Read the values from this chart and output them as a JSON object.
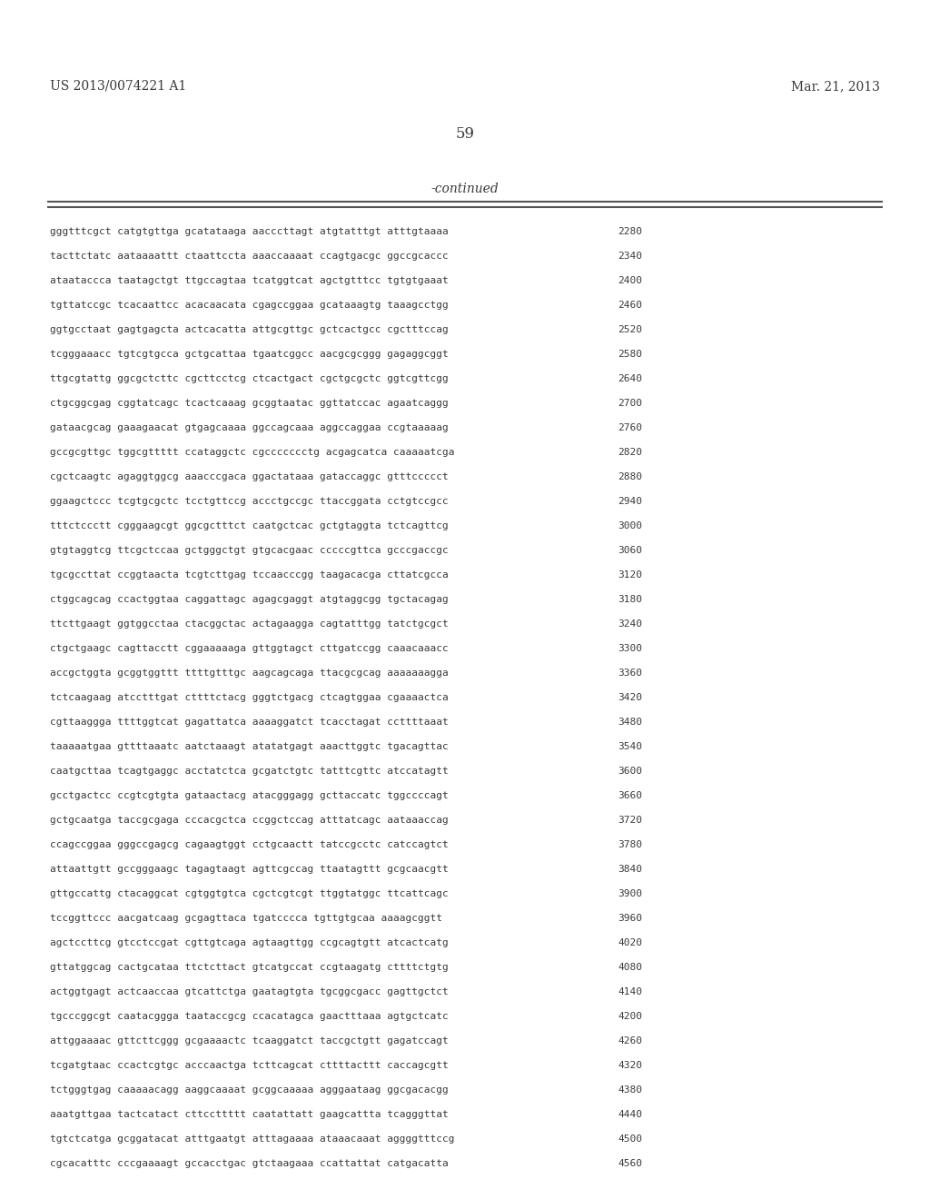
{
  "header_left": "US 2013/0074221 A1",
  "header_right": "Mar. 21, 2013",
  "page_number": "59",
  "continued_label": "-continued",
  "background_color": "#ffffff",
  "text_color": "#3a3a3a",
  "sequence_lines": [
    [
      "gggtttcgct catgtgttga gcatataaga aacccttagt atgtatttgt atttgtaaaa",
      "2280"
    ],
    [
      "tacttctatc aataaaattt ctaattccta aaaccaaaat ccagtgacgc ggccgcaccc",
      "2340"
    ],
    [
      "ataataccca taatagctgt ttgccagtaa tcatggtcat agctgtttcc tgtgtgaaat",
      "2400"
    ],
    [
      "tgttatccgc tcacaattcc acacaacata cgagccggaa gcataaagtg taaagcctgg",
      "2460"
    ],
    [
      "ggtgcctaat gagtgagcta actcacatta attgcgttgc gctcactgcc cgctttccag",
      "2520"
    ],
    [
      "tcgggaaacc tgtcgtgcca gctgcattaa tgaatcggcc aacgcgcggg gagaggcggt",
      "2580"
    ],
    [
      "ttgcgtattg ggcgctcttc cgcttcctcg ctcactgact cgctgcgctc ggtcgttcgg",
      "2640"
    ],
    [
      "ctgcggcgag cggtatcagc tcactcaaag gcggtaatac ggttatccac agaatcaggg",
      "2700"
    ],
    [
      "gataacgcag gaaagaacat gtgagcaaaa ggccagcaaa aggccaggaa ccgtaaaaag",
      "2760"
    ],
    [
      "gccgcgttgc tggcgttttt ccataggctc cgccccccctg acgagcatca caaaaatcga",
      "2820"
    ],
    [
      "cgctcaagtc agaggtggcg aaacccgaca ggactataaa gataccaggc gtttccccct",
      "2880"
    ],
    [
      "ggaagctccc tcgtgcgctc tcctgttccg accctgccgc ttaccggata cctgtccgcc",
      "2940"
    ],
    [
      "tttctccctt cgggaagcgt ggcgctttct caatgctcac gctgtaggta tctcagttcg",
      "3000"
    ],
    [
      "gtgtaggtcg ttcgctccaa gctgggctgt gtgcacgaac cccccgttca gcccgaccgc",
      "3060"
    ],
    [
      "tgcgccttat ccggtaacta tcgtcttgag tccaacccgg taagacacga cttatcgcca",
      "3120"
    ],
    [
      "ctggcagcag ccactggtaa caggattagc agagcgaggt atgtaggcgg tgctacagag",
      "3180"
    ],
    [
      "ttcttgaagt ggtggcctaa ctacggctac actagaagga cagtatttgg tatctgcgct",
      "3240"
    ],
    [
      "ctgctgaagc cagttacctt cggaaaaaga gttggtagct cttgatccgg caaacaaacc",
      "3300"
    ],
    [
      "accgctggta gcggtggttt ttttgtttgc aagcagcaga ttacgcgcag aaaaaaagga",
      "3360"
    ],
    [
      "tctcaagaag atcctttgat cttttctacg gggtctgacg ctcagtggaa cgaaaactca",
      "3420"
    ],
    [
      "cgttaaggga ttttggtcat gagattatca aaaaggatct tcacctagat ccttttaaat",
      "3480"
    ],
    [
      "taaaaatgaa gttttaaatc aatctaaagt atatatgagt aaacttggtc tgacagttac",
      "3540"
    ],
    [
      "caatgcttaa tcagtgaggc acctatctca gcgatctgtc tatttcgttc atccatagtt",
      "3600"
    ],
    [
      "gcctgactcc ccgtcgtgta gataactacg atacgggagg gcttaccatc tggccccagt",
      "3660"
    ],
    [
      "gctgcaatga taccgcgaga cccacgctca ccggctccag atttatcagc aataaaccag",
      "3720"
    ],
    [
      "ccagccggaa gggccgagcg cagaagtggt cctgcaactt tatccgcctc catccagtct",
      "3780"
    ],
    [
      "attaattgtt gccgggaagc tagagtaagt agttcgccag ttaatagttt gcgcaacgtt",
      "3840"
    ],
    [
      "gttgccattg ctacaggcat cgtggtgtca cgctcgtcgt ttggtatggc ttcattcagc",
      "3900"
    ],
    [
      "tccggttccc aacgatcaag gcgagttaca tgatcccca tgttgtgcaa aaaagcggtt",
      "3960"
    ],
    [
      "agctccttcg gtcctccgat cgttgtcaga agtaagttgg ccgcagtgtt atcactcatg",
      "4020"
    ],
    [
      "gttatggcag cactgcataa ttctcttact gtcatgccat ccgtaagatg cttttctgtg",
      "4080"
    ],
    [
      "actggtgagt actcaaccaa gtcattctga gaatagtgta tgcggcgacc gagttgctct",
      "4140"
    ],
    [
      "tgcccggcgt caatacggga taataccgcg ccacatagca gaactttaaa agtgctcatc",
      "4200"
    ],
    [
      "attggaaaac gttcttcggg gcgaaaactc tcaaggatct taccgctgtt gagatccagt",
      "4260"
    ],
    [
      "tcgatgtaac ccactcgtgc acccaactga tcttcagcat cttttacttt caccagcgtt",
      "4320"
    ],
    [
      "tctgggtgag caaaaacagg aaggcaaaat gcggcaaaaa agggaataag ggcgacacgg",
      "4380"
    ],
    [
      "aaatgttgaa tactcatact cttccttttt caatattatt gaagcattta tcagggttat",
      "4440"
    ],
    [
      "tgtctcatga gcggatacat atttgaatgt atttagaaaa ataaacaaat aggggtttccg",
      "4500"
    ],
    [
      "cgcacatttc cccgaaaagt gccacctgac gtctaagaaa ccattattat catgacatta",
      "4560"
    ]
  ]
}
